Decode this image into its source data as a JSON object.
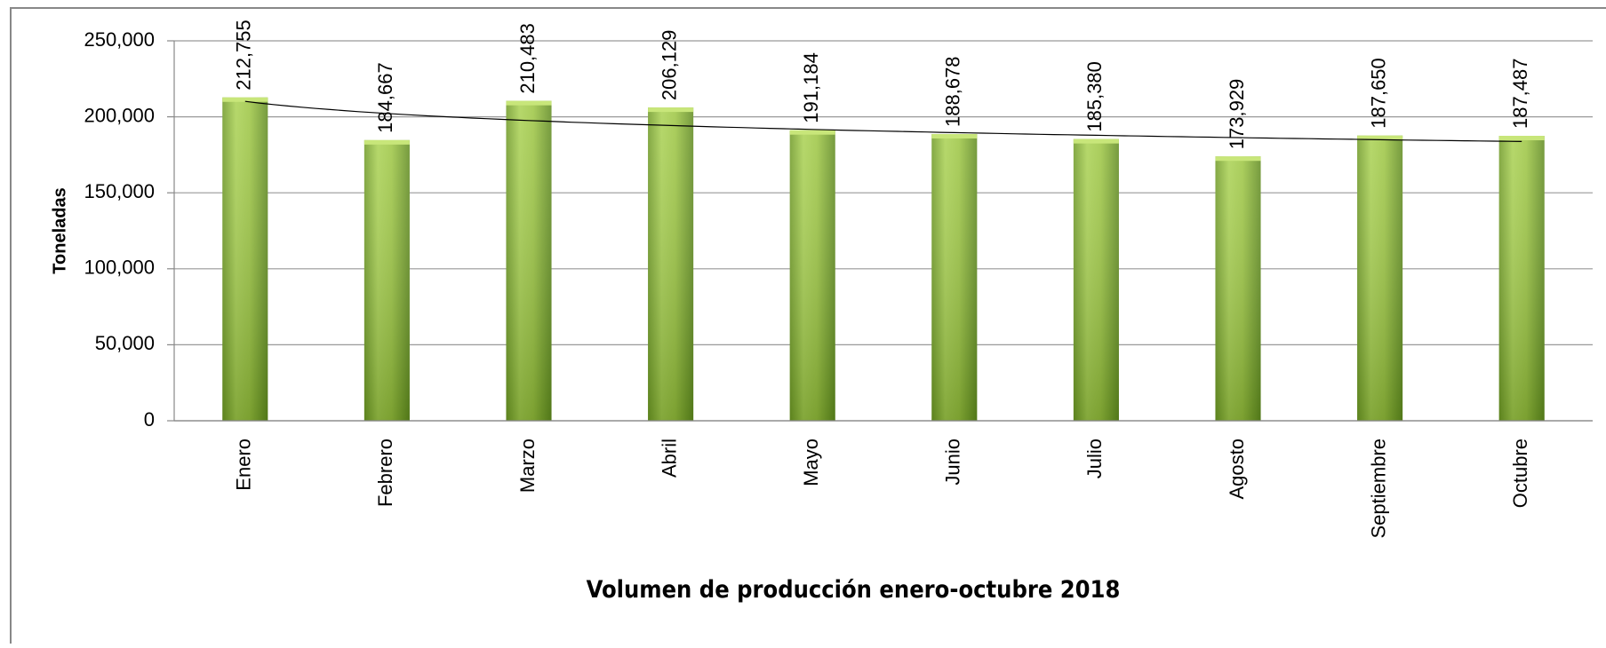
{
  "chart_data": {
    "type": "bar",
    "x_label": "Volumen de producción  enero-octubre 2018",
    "y_label": "Toneladas",
    "categories": [
      "Enero",
      "Febrero",
      "Marzo",
      "Abril",
      "Mayo",
      "Junio",
      "Julio",
      "Agosto",
      "Septiembre",
      "Octubre"
    ],
    "values": [
      212755,
      184667,
      210483,
      206129,
      191184,
      188678,
      185380,
      173929,
      187650,
      187487
    ],
    "value_labels": [
      "212,755",
      "184,667",
      "210,483",
      "206,129",
      "191,184",
      "188,678",
      "185,380",
      "173,929",
      "187,650",
      "187,487"
    ],
    "color": "#9bc440",
    "ylim": [
      0,
      250000
    ],
    "yticks": [
      0,
      {
        "value": 50000,
        "label": "50,000"
      },
      {
        "value": 100000,
        "label": "100,000"
      },
      {
        "value": 150000,
        "label": "150,000"
      },
      {
        "value": 200000,
        "label": "200,000"
      },
      {
        "value": 250000,
        "label": "250,000"
      }
    ],
    "grid": true,
    "trendline": true
  }
}
